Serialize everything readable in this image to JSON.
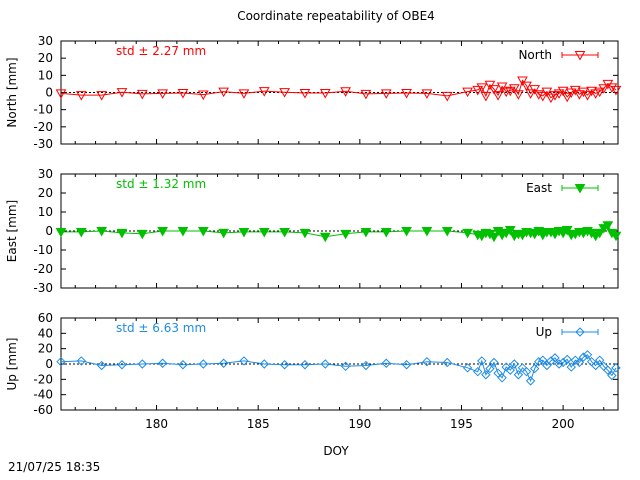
{
  "chart_data": {
    "type": "scatter",
    "title": "Coordinate repeatability of OBE4",
    "xlabel": "DOY",
    "xlim": [
      175.3,
      202.7
    ],
    "x_ticks": [
      180,
      185,
      190,
      195,
      200
    ],
    "panels": [
      {
        "name": "North",
        "ylabel": "North [mm]",
        "ylim": [
          -30,
          30
        ],
        "y_ticks": [
          30,
          20,
          10,
          0,
          -10,
          -20,
          -30
        ],
        "std_label": "std ± 2.27 mm",
        "color": "#ff0000",
        "marker": "triangle-down-open",
        "x": [
          175.3,
          176.3,
          177.3,
          178.3,
          179.3,
          180.3,
          181.3,
          182.3,
          183.3,
          184.3,
          185.3,
          186.3,
          187.3,
          188.3,
          189.3,
          190.3,
          191.3,
          192.3,
          193.3,
          194.3,
          195.3,
          195.8,
          196.0,
          196.2,
          196.4,
          196.6,
          196.8,
          197.0,
          197.2,
          197.4,
          197.6,
          197.8,
          198.0,
          198.2,
          198.4,
          198.6,
          198.8,
          199.0,
          199.2,
          199.4,
          199.6,
          199.8,
          200.0,
          200.2,
          200.4,
          200.6,
          200.8,
          201.0,
          201.2,
          201.4,
          201.6,
          201.8,
          202.0,
          202.2,
          202.4,
          202.6
        ],
        "y": [
          -0.5,
          -1.5,
          -1.5,
          0.2,
          -0.8,
          -0.5,
          -0.3,
          -1.2,
          0.5,
          -0.5,
          0.8,
          0.2,
          -0.3,
          -0.3,
          0.7,
          -0.8,
          -0.5,
          -0.3,
          -0.5,
          -2.0,
          0.5,
          1.5,
          3.0,
          -2.0,
          4.5,
          2.0,
          -1.5,
          3.5,
          0.5,
          1.0,
          2.5,
          -1.0,
          7.0,
          4.0,
          -0.5,
          2.0,
          -1.0,
          -2.0,
          0.5,
          -3.0,
          -1.5,
          -0.5,
          1.0,
          -2.5,
          0.0,
          1.5,
          -1.0,
          0.5,
          -1.5,
          1.0,
          -0.5,
          0.5,
          2.5,
          5.0,
          3.0,
          1.5
        ]
      },
      {
        "name": "East",
        "ylabel": "East [mm]",
        "ylim": [
          -30,
          30
        ],
        "y_ticks": [
          30,
          20,
          10,
          0,
          -10,
          -20,
          -30
        ],
        "std_label": "std ± 1.32 mm",
        "color": "#00c000",
        "marker": "triangle-down-filled",
        "x": [
          175.3,
          176.3,
          177.3,
          178.3,
          179.3,
          180.3,
          181.3,
          182.3,
          183.3,
          184.3,
          185.3,
          186.3,
          187.3,
          188.3,
          189.3,
          190.3,
          191.3,
          192.3,
          193.3,
          194.3,
          195.3,
          195.8,
          196.0,
          196.2,
          196.4,
          196.6,
          196.8,
          197.0,
          197.2,
          197.4,
          197.6,
          197.8,
          198.0,
          198.2,
          198.4,
          198.6,
          198.8,
          199.0,
          199.2,
          199.4,
          199.6,
          199.8,
          200.0,
          200.2,
          200.4,
          200.6,
          200.8,
          201.0,
          201.2,
          201.4,
          201.6,
          201.8,
          202.0,
          202.2,
          202.4,
          202.6
        ],
        "y": [
          -0.5,
          -0.5,
          0.0,
          -1.0,
          -1.5,
          0.0,
          0.0,
          0.0,
          -1.0,
          -0.5,
          -0.5,
          -0.5,
          -1.0,
          -3.0,
          -1.5,
          -0.5,
          -0.5,
          0.0,
          0.0,
          0.0,
          -1.0,
          -2.0,
          -2.5,
          -1.0,
          -1.5,
          -3.0,
          0.0,
          -2.0,
          -1.0,
          0.5,
          -2.5,
          -1.5,
          -2.0,
          -0.5,
          -1.0,
          -1.5,
          0.0,
          -2.0,
          -0.5,
          -0.5,
          -1.5,
          0.0,
          -1.0,
          0.5,
          -2.0,
          -1.5,
          -0.5,
          -1.0,
          0.0,
          -1.0,
          -2.5,
          -1.0,
          1.5,
          3.0,
          -1.0,
          -2.5
        ]
      },
      {
        "name": "Up",
        "ylabel": "Up [mm]",
        "ylim": [
          -60,
          60
        ],
        "y_ticks": [
          60,
          40,
          20,
          0,
          -20,
          -40,
          -60
        ],
        "std_label": "std ± 6.63 mm",
        "color": "#1e8ce6",
        "marker": "diamond-open",
        "x": [
          175.3,
          176.3,
          177.3,
          178.3,
          179.3,
          180.3,
          181.3,
          182.3,
          183.3,
          184.3,
          185.3,
          186.3,
          187.3,
          188.3,
          189.3,
          190.3,
          191.3,
          192.3,
          193.3,
          194.3,
          195.3,
          195.8,
          196.0,
          196.2,
          196.4,
          196.6,
          196.8,
          197.0,
          197.2,
          197.4,
          197.6,
          197.8,
          198.0,
          198.2,
          198.4,
          198.6,
          198.8,
          199.0,
          199.2,
          199.4,
          199.6,
          199.8,
          200.0,
          200.2,
          200.4,
          200.6,
          200.8,
          201.0,
          201.2,
          201.4,
          201.6,
          201.8,
          202.0,
          202.2,
          202.4,
          202.6
        ],
        "y": [
          3,
          4,
          -2,
          -1,
          0,
          1,
          -1,
          0,
          1,
          4,
          0,
          -1,
          -1,
          0,
          -3,
          -2,
          1,
          -1,
          3,
          2,
          -5,
          -10,
          4,
          -14,
          -6,
          2,
          -12,
          -18,
          -4,
          -8,
          0,
          -14,
          -5,
          -10,
          -22,
          -6,
          3,
          5,
          -2,
          4,
          8,
          0,
          2,
          6,
          -4,
          5,
          2,
          9,
          12,
          3,
          -2,
          5,
          -3,
          -8,
          -15,
          -5
        ]
      }
    ],
    "x_tick_labels": [
      "180",
      "185",
      "190",
      "195",
      "200"
    ],
    "footer_timestamp": "21/07/25 18:35",
    "grid": false,
    "legend": "top-right"
  }
}
